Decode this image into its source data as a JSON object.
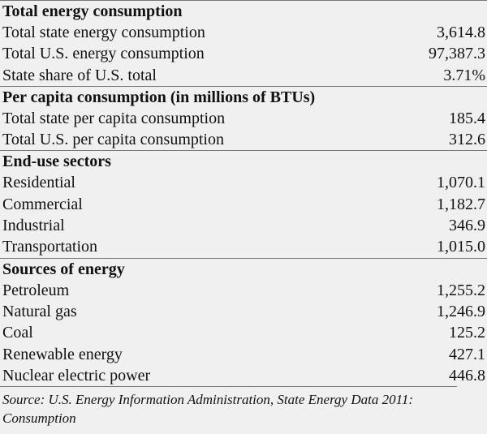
{
  "sections": [
    {
      "heading": "Total energy consumption",
      "rows": [
        {
          "label": "Total state energy consumption",
          "value": "3,614.8"
        },
        {
          "label": "Total U.S. energy consumption",
          "value": "97,387.3"
        },
        {
          "label": "State share of U.S. total",
          "value": "3.71%"
        }
      ]
    },
    {
      "heading": "Per capita consumption (in millions of BTUs)",
      "rows": [
        {
          "label": "Total state per capita consumption",
          "value": "185.4"
        },
        {
          "label": "Total U.S. per capita consumption",
          "value": "312.6"
        }
      ]
    },
    {
      "heading": "End-use sectors",
      "rows": [
        {
          "label": "Residential",
          "value": "1,070.1"
        },
        {
          "label": "Commercial",
          "value": "1,182.7"
        },
        {
          "label": "Industrial",
          "value": "346.9"
        },
        {
          "label": "Transportation",
          "value": "1,015.0"
        }
      ]
    },
    {
      "heading": "Sources of energy",
      "rows": [
        {
          "label": "Petroleum",
          "value": "1,255.2"
        },
        {
          "label": "Natural gas",
          "value": "1,246.9"
        },
        {
          "label": "Coal",
          "value": "125.2"
        },
        {
          "label": "Renewable energy",
          "value": "427.1"
        },
        {
          "label": "Nuclear electric power",
          "value": "446.8"
        }
      ]
    }
  ],
  "source": "Source: U.S. Energy Information Administration, State Energy Data 2011: Consumption"
}
